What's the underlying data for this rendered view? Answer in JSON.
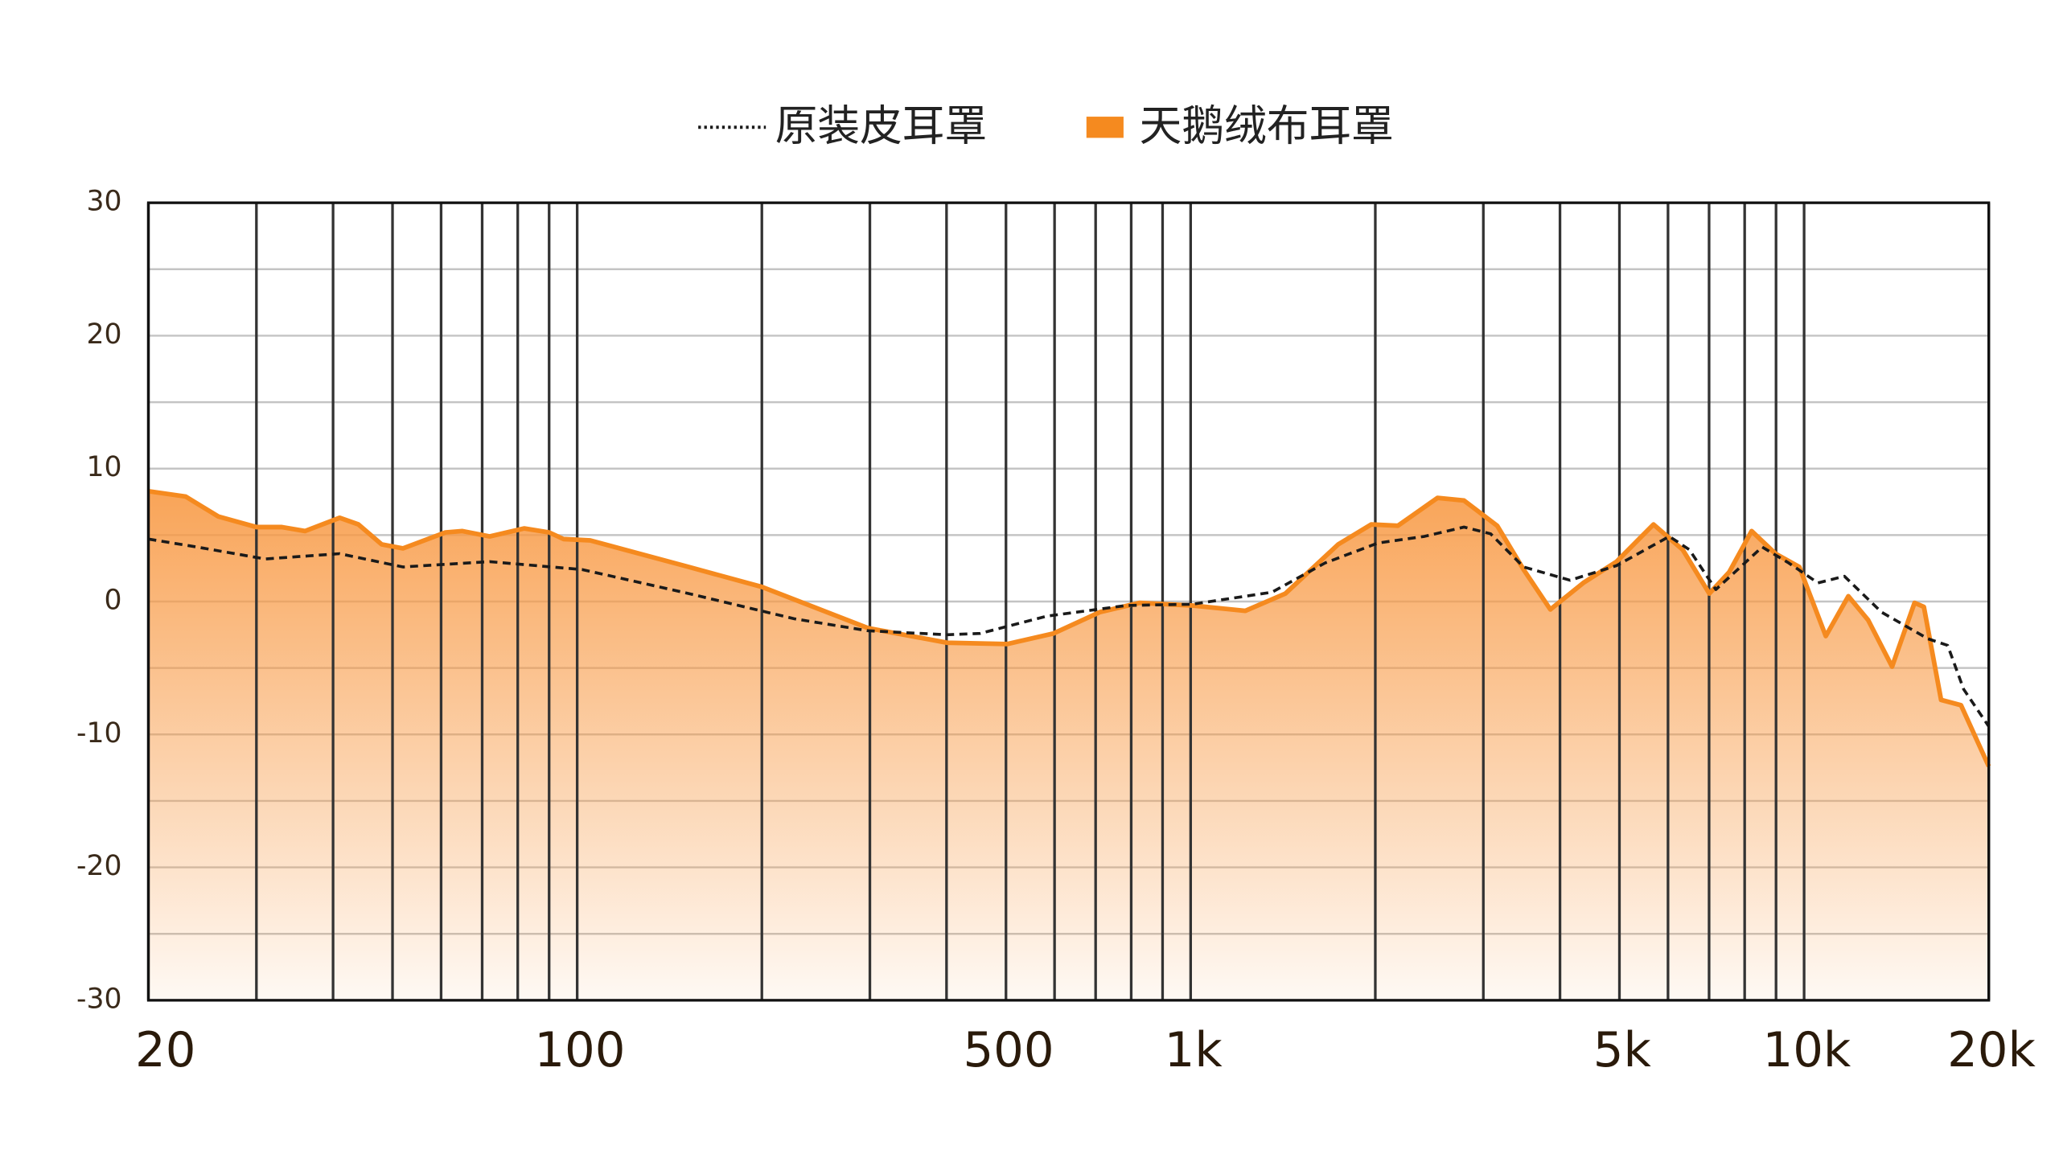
{
  "chart_data": {
    "type": "area-line",
    "xscale": "log",
    "xlim": [
      20,
      20000
    ],
    "ylim": [
      -30,
      30
    ],
    "xticks": [
      20,
      100,
      500,
      {
        "value": 1000,
        "label": "1k"
      },
      {
        "value": 5000,
        "label": "5k"
      },
      {
        "value": 10000,
        "label": "10k"
      },
      {
        "value": 20000,
        "label": "20k"
      }
    ],
    "xminor": [
      30,
      40,
      50,
      60,
      70,
      80,
      90,
      200,
      300,
      400,
      600,
      700,
      800,
      900,
      2000,
      3000,
      4000,
      6000,
      7000,
      8000,
      9000
    ],
    "yticks": [
      30,
      20,
      10,
      0,
      -10,
      -20,
      -30
    ],
    "yminor": [
      25,
      15,
      5,
      -5,
      -15,
      -25
    ],
    "grid": true,
    "legend": "top",
    "series": [
      {
        "name": "原装皮耳罩",
        "color": "#1a1a1a",
        "style": "dashed",
        "x": [
          20,
          24,
          31,
          41,
          52,
          72,
          102,
          152,
          226,
          298,
          401,
          454,
          583,
          785,
          1007,
          1357,
          1656,
          2020,
          2404,
          2790,
          3082,
          3490,
          4154,
          4946,
          6030,
          6500,
          7180,
          8544,
          9440,
          10532,
          11632,
          13372,
          15912,
          17140,
          18200,
          20000
        ],
        "values": [
          4.7,
          4.1,
          3.2,
          3.6,
          2.6,
          3.0,
          2.4,
          0.6,
          -1.3,
          -2.2,
          -2.5,
          -2.4,
          -1.1,
          -0.3,
          -0.2,
          0.7,
          2.9,
          4.4,
          4.9,
          5.6,
          5.1,
          2.6,
          1.6,
          2.7,
          4.9,
          3.9,
          0.9,
          4.1,
          2.9,
          1.4,
          1.9,
          -0.8,
          -2.8,
          -3.3,
          -6.6,
          -9.4
        ]
      },
      {
        "name": "天鹅绒布耳罩",
        "color": "#f58a1f",
        "style": "area",
        "x": [
          20,
          23,
          26,
          30,
          33,
          36,
          41,
          44,
          48,
          52,
          61,
          65,
          72,
          82,
          90,
          95,
          105,
          152,
          200,
          298,
          401,
          502,
          598,
          711,
          825,
          1007,
          1228,
          1427,
          1740,
          1970,
          2177,
          2526,
          2790,
          3160,
          3490,
          3858,
          4366,
          4946,
          5682,
          6340,
          7006,
          7546,
          8212,
          8982,
          9822,
          10848,
          11806,
          12720,
          13912,
          15136,
          15676,
          16722,
          18020,
          20000
        ],
        "values": [
          8.3,
          7.9,
          6.4,
          5.6,
          5.6,
          5.3,
          6.3,
          5.8,
          4.3,
          4.0,
          5.2,
          5.3,
          4.9,
          5.5,
          5.2,
          4.7,
          4.6,
          2.6,
          1.1,
          -2.0,
          -3.1,
          -3.2,
          -2.4,
          -0.8,
          -0.1,
          -0.3,
          -0.7,
          0.6,
          4.3,
          5.8,
          5.7,
          7.8,
          7.6,
          5.7,
          2.4,
          -0.6,
          1.4,
          3.0,
          5.8,
          3.9,
          0.6,
          2.2,
          5.3,
          3.6,
          2.6,
          -2.6,
          0.4,
          -1.4,
          -4.9,
          -0.1,
          -0.4,
          -7.4,
          -7.8,
          -12.4
        ]
      }
    ]
  }
}
